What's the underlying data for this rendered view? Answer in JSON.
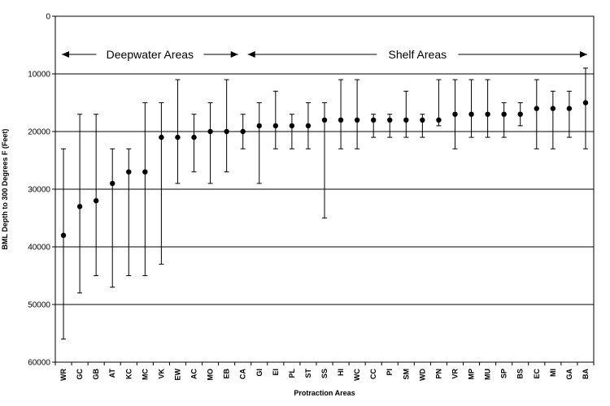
{
  "chart_data": {
    "type": "scatter",
    "title": "",
    "xlabel": "Protraction Areas",
    "ylabel": "BML Depth to 300 Degrees F (Feet)",
    "ylim": [
      0,
      60000
    ],
    "y_inverted": true,
    "yticks": [
      "0",
      "10000",
      "20000",
      "30000",
      "40000",
      "50000",
      "60000"
    ],
    "grid": "horizontal",
    "categories": [
      "WR",
      "GC",
      "GB",
      "AT",
      "KC",
      "MC",
      "VK",
      "EW",
      "AC",
      "MO",
      "EB",
      "CA",
      "GI",
      "EI",
      "PL",
      "ST",
      "SS",
      "HI",
      "WC",
      "CC",
      "PI",
      "SM",
      "WD",
      "PN",
      "VR",
      "MP",
      "MU",
      "SP",
      "BS",
      "EC",
      "MI",
      "GA",
      "BA"
    ],
    "series": [
      {
        "values": [
          38000,
          33000,
          32000,
          29000,
          27000,
          27000,
          21000,
          21000,
          21000,
          20000,
          20000,
          20000,
          19000,
          19000,
          19000,
          19000,
          18000,
          18000,
          18000,
          18000,
          18000,
          18000,
          18000,
          18000,
          17000,
          17000,
          17000,
          17000,
          17000,
          16000,
          16000,
          16000,
          15000
        ],
        "low": [
          23000,
          17000,
          17000,
          23000,
          23000,
          15000,
          15000,
          11000,
          17000,
          15000,
          11000,
          17000,
          15000,
          13000,
          17000,
          15000,
          15000,
          11000,
          11000,
          17000,
          17000,
          13000,
          17000,
          11000,
          11000,
          11000,
          11000,
          15000,
          15000,
          11000,
          13000,
          13000,
          9000
        ],
        "high": [
          56000,
          48000,
          45000,
          47000,
          45000,
          45000,
          43000,
          29000,
          27000,
          29000,
          27000,
          23000,
          29000,
          23000,
          23000,
          23000,
          35000,
          23000,
          23000,
          21000,
          21000,
          21000,
          21000,
          19000,
          23000,
          21000,
          21000,
          21000,
          19000,
          23000,
          23000,
          21000,
          23000
        ]
      }
    ],
    "annotations": [
      {
        "text": "Deepwater Areas",
        "from": "WR",
        "to": "CA"
      },
      {
        "text": "Shelf Areas",
        "from": "CA",
        "to": "BA"
      }
    ]
  }
}
